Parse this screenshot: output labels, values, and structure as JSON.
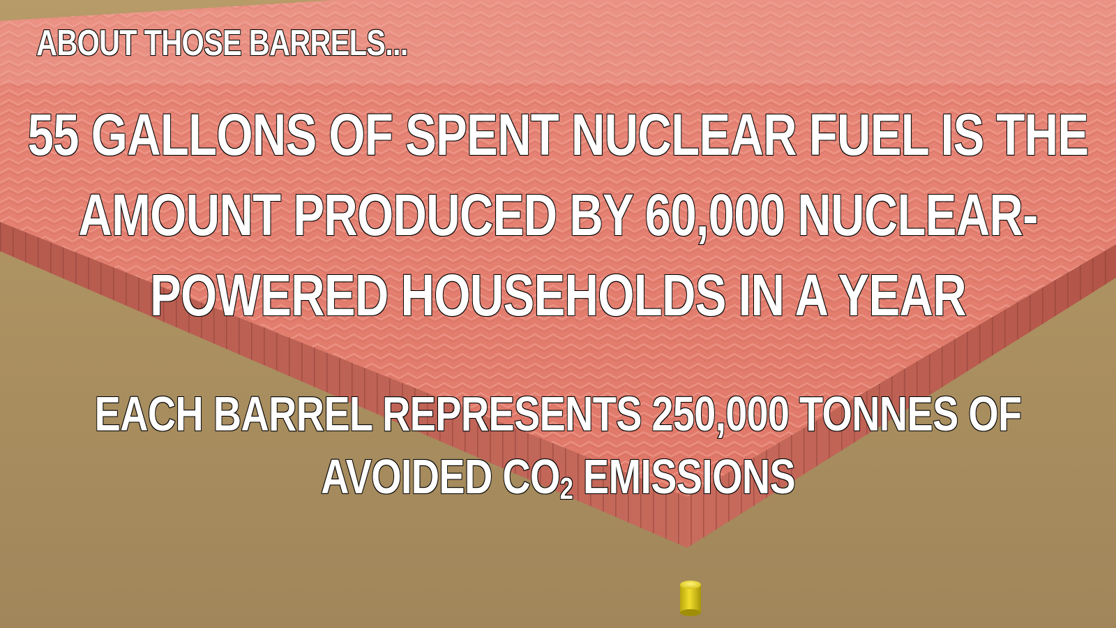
{
  "heading": "ABOUT THOSE BARRELS...",
  "fact_lines": [
    "55 GALLONS OF SPENT NUCLEAR FUEL IS THE",
    "AMOUNT PRODUCED BY 60,000 NUCLEAR-",
    "POWERED HOUSEHOLDS IN A YEAR"
  ],
  "co2_line_1": "EACH BARREL REPRESENTS 250,000 TONNES OF",
  "co2_line_2": {
    "before": "AVOIDED CO",
    "subscript": "2",
    "after": " EMISSIONS"
  },
  "colors": {
    "barrel_block": "#e07a6c",
    "ground": "#a98e5e",
    "single_barrel": "#e6d21c",
    "text": "#ffffff",
    "text_outline": "#000000"
  }
}
